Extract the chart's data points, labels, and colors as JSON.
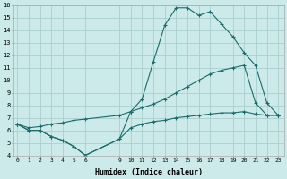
{
  "xlabel": "Humidex (Indice chaleur)",
  "bg_color": "#cceaea",
  "grid_color": "#aacfcf",
  "line_color": "#1a6b6b",
  "xlim": [
    -0.3,
    23.5
  ],
  "ylim": [
    4,
    16
  ],
  "yticks": [
    4,
    5,
    6,
    7,
    8,
    9,
    10,
    11,
    12,
    13,
    14,
    15,
    16
  ],
  "x_ticks": [
    0,
    1,
    2,
    3,
    4,
    5,
    6,
    9,
    10,
    11,
    12,
    13,
    14,
    15,
    16,
    17,
    18,
    19,
    20,
    21,
    22,
    23
  ],
  "line1_x": [
    0,
    1,
    2,
    3,
    4,
    5,
    6,
    9,
    10,
    11,
    12,
    13,
    14,
    15,
    16,
    17,
    18,
    19,
    20,
    21,
    22,
    23
  ],
  "line1_y": [
    6.5,
    6.0,
    6.0,
    5.5,
    5.2,
    4.7,
    4.0,
    5.3,
    6.2,
    6.5,
    6.7,
    6.8,
    7.0,
    7.1,
    7.2,
    7.3,
    7.4,
    7.4,
    7.5,
    7.3,
    7.2,
    7.2
  ],
  "line2_x": [
    0,
    1,
    2,
    3,
    4,
    5,
    6,
    9,
    10,
    11,
    12,
    13,
    14,
    15,
    16,
    17,
    18,
    19,
    20,
    21,
    22,
    23
  ],
  "line2_y": [
    6.5,
    6.0,
    6.0,
    5.5,
    5.2,
    4.7,
    4.0,
    5.3,
    7.5,
    8.5,
    11.5,
    14.4,
    15.8,
    15.8,
    15.2,
    15.5,
    14.5,
    13.5,
    12.2,
    11.2,
    8.2,
    7.2
  ],
  "line3_x": [
    0,
    1,
    2,
    3,
    4,
    5,
    6,
    9,
    10,
    11,
    12,
    13,
    14,
    15,
    16,
    17,
    18,
    19,
    20,
    21,
    22,
    23
  ],
  "line3_y": [
    6.5,
    6.2,
    6.3,
    6.5,
    6.6,
    6.8,
    6.9,
    7.2,
    7.5,
    7.8,
    8.1,
    8.5,
    9.0,
    9.5,
    10.0,
    10.5,
    10.8,
    11.0,
    11.2,
    8.2,
    7.2,
    7.2
  ]
}
